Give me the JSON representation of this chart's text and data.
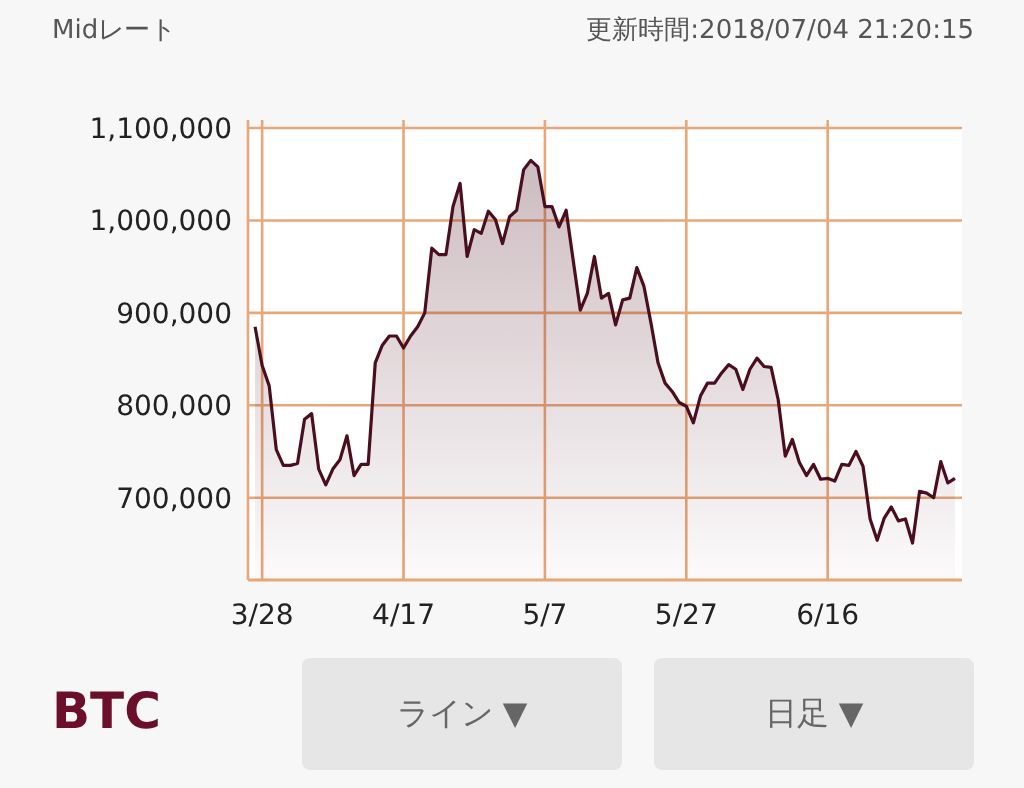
{
  "chart_data": {
    "type": "area",
    "title": "Midレート",
    "subtitle": "更新時間:2018/07/04 21:20:15",
    "annotations": [
      "BTC",
      "ライン ▼",
      "日足 ▼"
    ],
    "x": [
      "--03-27",
      "--03-28",
      "--03-29",
      "--03-30",
      "--03-31",
      "--04-01",
      "--04-02",
      "--04-03",
      "--04-04",
      "--04-05",
      "--04-06",
      "--04-07",
      "--04-08",
      "--04-09",
      "--04-10",
      "--04-11",
      "--04-12",
      "--04-13",
      "--04-14",
      "--04-15",
      "--04-16",
      "--04-17",
      "--04-18",
      "--04-19",
      "--04-20",
      "--04-21",
      "--04-22",
      "--04-23",
      "--04-24",
      "--04-25",
      "--04-26",
      "--04-27",
      "--04-28",
      "--04-29",
      "--04-30",
      "--05-01",
      "--05-02",
      "--05-03",
      "--05-04",
      "--05-05",
      "--05-06",
      "--05-07",
      "--05-08",
      "--05-09",
      "--05-10",
      "--05-11",
      "--05-12",
      "--05-13",
      "--05-14",
      "--05-15",
      "--05-16",
      "--05-17",
      "--05-18",
      "--05-19",
      "--05-20",
      "--05-21",
      "--05-22",
      "--05-23",
      "--05-24",
      "--05-25",
      "--05-26",
      "--05-27",
      "--05-28",
      "--05-29",
      "--05-30",
      "--05-31",
      "--06-01",
      "--06-02",
      "--06-03",
      "--06-04",
      "--06-05",
      "--06-06",
      "--06-07",
      "--06-08",
      "--06-09",
      "--06-10",
      "--06-11",
      "--06-12",
      "--06-13",
      "--06-14",
      "--06-15",
      "--06-16",
      "--06-17",
      "--06-18",
      "--06-19",
      "--06-20",
      "--06-21",
      "--06-22",
      "--06-23",
      "--06-24",
      "--06-25",
      "--06-26",
      "--06-27",
      "--06-28",
      "--06-29",
      "--06-30",
      "--07-01",
      "--07-02",
      "--07-03",
      "--07-04"
    ],
    "series": [
      {
        "color": "#4a0e1e",
        "values": [
          885000,
          843000,
          821000,
          752000,
          735000,
          735000,
          737000,
          785000,
          791000,
          731000,
          714000,
          731000,
          741000,
          767000,
          724000,
          736000,
          736000,
          846000,
          865000,
          875000,
          875000,
          862000,
          875000,
          885000,
          900000,
          970000,
          963000,
          963000,
          1015000,
          1040000,
          961000,
          990000,
          986000,
          1010000,
          1001000,
          975000,
          1004000,
          1011000,
          1055000,
          1065000,
          1058000,
          1015000,
          1015000,
          993000,
          1011000,
          957000,
          903000,
          921000,
          961000,
          916000,
          921000,
          887000,
          914000,
          916000,
          949000,
          929000,
          889000,
          846000,
          824000,
          815000,
          803000,
          799000,
          781000,
          810000,
          824000,
          824000,
          835000,
          844000,
          839000,
          817000,
          839000,
          851000,
          842000,
          841000,
          806000,
          745000,
          763000,
          738000,
          724000,
          736000,
          720000,
          721000,
          718000,
          736000,
          735000,
          750000,
          734000,
          677000,
          654000,
          678000,
          690000,
          675000,
          677000,
          651000,
          707000,
          705000,
          700000,
          739000,
          716000,
          721000
        ]
      }
    ],
    "xlim": [
      "--03-26",
      "--07-05"
    ],
    "ylim": [
      611000,
      1100000
    ],
    "xticks": [
      {
        "value": "--03-28",
        "label": "3/28"
      },
      {
        "value": "--04-17",
        "label": "4/17"
      },
      {
        "value": "--05-07",
        "label": "5/7"
      },
      {
        "value": "--05-27",
        "label": "5/27"
      },
      {
        "value": "--06-16",
        "label": "6/16"
      }
    ],
    "yticks": [
      {
        "value": 700000,
        "label": "700,000"
      },
      {
        "value": 800000,
        "label": "800,000"
      },
      {
        "value": 900000,
        "label": "900,000"
      },
      {
        "value": 1000000,
        "label": "1,000,000"
      },
      {
        "value": 1100000,
        "label": "1,100,000"
      }
    ],
    "grid": true,
    "line_style": "solid"
  }
}
